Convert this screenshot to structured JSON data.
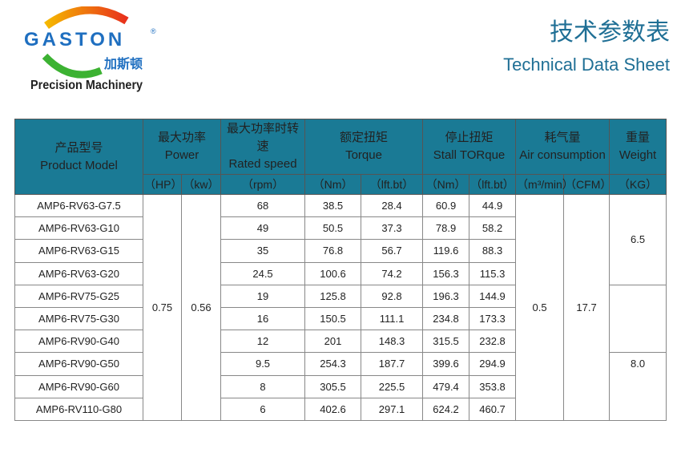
{
  "logo": {
    "brand": "GASTON",
    "registered": "®",
    "cn": "加斯顿",
    "tagline": "Precision Machinery"
  },
  "title": {
    "cn": "技术参数表",
    "en": "Technical Data Sheet"
  },
  "colors": {
    "header": "#1a7a95",
    "title": "#1f6f95",
    "brand_blue": "#1f6fc0"
  },
  "headers": {
    "model": {
      "cn": "产品型号",
      "en": "Product Model"
    },
    "power": {
      "cn": "最大功率",
      "en": "Power",
      "u1": "（HP）",
      "u2": "（kw）"
    },
    "speed": {
      "cn": "最大功率时转速",
      "en": "Rated speed",
      "u1": "（rpm）"
    },
    "torque": {
      "cn": "额定扭矩",
      "en": "Torque",
      "u1": "（Nm）",
      "u2": "（lft.bt）"
    },
    "stall": {
      "cn": "停止扭矩",
      "en": "Stall TORque",
      "u1": "（Nm）",
      "u2": "（lft.bt）"
    },
    "air": {
      "cn": "耗气量",
      "en": "Air consumption",
      "u1": "（m³/min）",
      "u2": "（CFM）"
    },
    "weight": {
      "cn": "重量",
      "en": "Weight",
      "u1": "（KG）"
    }
  },
  "shared": {
    "hp": "0.75",
    "kw": "0.56",
    "m3": "0.5",
    "cfm": "17.7",
    "w1": "6.5",
    "w2": "8.0"
  },
  "rows": [
    [
      "AMP6-RV63-G7.5",
      "68",
      "38.5",
      "28.4",
      "60.9",
      "44.9"
    ],
    [
      "AMP6-RV63-G10",
      "49",
      "50.5",
      "37.3",
      "78.9",
      "58.2"
    ],
    [
      "AMP6-RV63-G15",
      "35",
      "76.8",
      "56.7",
      "119.6",
      "88.3"
    ],
    [
      "AMP6-RV63-G20",
      "24.5",
      "100.6",
      "74.2",
      "156.3",
      "115.3"
    ],
    [
      "AMP6-RV75-G25",
      "19",
      "125.8",
      "92.8",
      "196.3",
      "144.9"
    ],
    [
      "AMP6-RV75-G30",
      "16",
      "150.5",
      "111.1",
      "234.8",
      "173.3"
    ],
    [
      "AMP6-RV90-G40",
      "12",
      "201",
      "148.3",
      "315.5",
      "232.8"
    ],
    [
      "AMP6-RV90-G50",
      "9.5",
      "254.3",
      "187.7",
      "399.6",
      "294.9"
    ],
    [
      "AMP6-RV90-G60",
      "8",
      "305.5",
      "225.5",
      "479.4",
      "353.8"
    ],
    [
      "AMP6-RV110-G80",
      "6",
      "402.6",
      "297.1",
      "624.2",
      "460.7"
    ]
  ]
}
